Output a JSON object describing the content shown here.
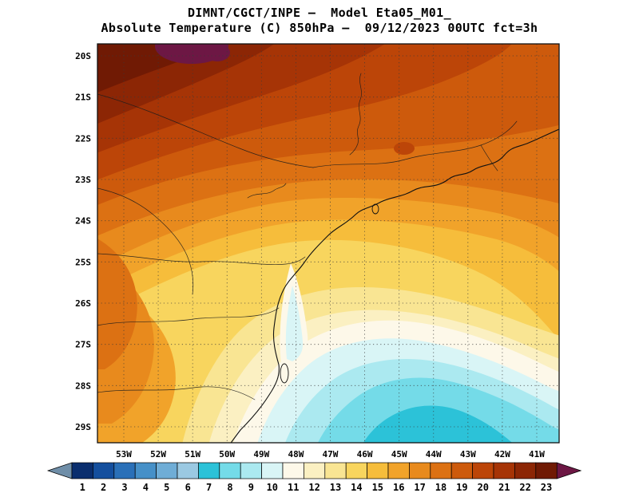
{
  "header": {
    "title_line1": "DIMNT/CGCT/INPE —  Model Eta05_M01_",
    "title_line2": "Absolute Temperature (C) 850hPa —  09/12/2023 00UTC fct=3h"
  },
  "map": {
    "lat_labels": [
      "20S",
      "21S",
      "22S",
      "23S",
      "24S",
      "25S",
      "26S",
      "27S",
      "28S",
      "29S"
    ],
    "lon_labels": [
      "53W",
      "52W",
      "51W",
      "50W",
      "49W",
      "48W",
      "47W",
      "46W",
      "45W",
      "44W",
      "43W",
      "42W",
      "41W"
    ]
  },
  "colorbar": {
    "tick_labels": [
      "1",
      "2",
      "3",
      "4",
      "5",
      "6",
      "7",
      "8",
      "9",
      "10",
      "11",
      "12",
      "13",
      "14",
      "15",
      "16",
      "17",
      "18",
      "19",
      "20",
      "21",
      "22",
      "23"
    ],
    "colors": [
      "#0a2e6e",
      "#144f9e",
      "#2a70b8",
      "#4690c8",
      "#6fadd6",
      "#9bc9e2",
      "#2cc2d8",
      "#74dbe8",
      "#abe9f0",
      "#d9f5f6",
      "#fdf8e9",
      "#fbf0c2",
      "#f9e593",
      "#f8d55e",
      "#f6bd3b",
      "#f1a32a",
      "#e88a1d",
      "#dc7113",
      "#cd5a0c",
      "#bc4508",
      "#a63406",
      "#8c2605",
      "#701a04"
    ],
    "under_arrow_color": "#6f8ea8",
    "over_arrow_color": "#6d1744"
  },
  "chart_data": {
    "type": "heatmap",
    "title": "DIMNT/CGCT/INPE — Model Eta05_M01_",
    "subtitle": "Absolute Temperature (C) 850hPa — 09/12/2023 00UTC fct=3h",
    "variable": "Absolute Temperature",
    "units": "C",
    "level": "850hPa",
    "valid_time": "09/12/2023 00UTC",
    "forecast": "fct=3h",
    "x_labels": [
      "53W",
      "52W",
      "51W",
      "50W",
      "49W",
      "48W",
      "47W",
      "46W",
      "45W",
      "44W",
      "43W",
      "42W",
      "41W"
    ],
    "y_labels": [
      "20S",
      "21S",
      "22S",
      "23S",
      "24S",
      "25S",
      "26S",
      "27S",
      "28S",
      "29S"
    ],
    "levels": [
      1,
      2,
      3,
      4,
      5,
      6,
      7,
      8,
      9,
      10,
      11,
      12,
      13,
      14,
      15,
      16,
      17,
      18,
      19,
      20,
      21,
      22,
      23
    ],
    "legend_position": "bottom",
    "grid": true,
    "values_approx_C": [
      [
        22,
        22,
        22,
        23,
        22,
        22,
        21,
        20,
        20,
        19,
        19,
        18,
        18
      ],
      [
        21,
        21,
        21,
        21,
        21,
        20,
        20,
        19,
        19,
        19,
        18,
        18,
        17
      ],
      [
        20,
        20,
        20,
        20,
        19,
        19,
        19,
        18,
        18,
        18,
        17,
        17,
        17
      ],
      [
        19,
        19,
        18,
        18,
        18,
        17,
        17,
        17,
        17,
        17,
        16,
        16,
        16
      ],
      [
        18,
        17,
        17,
        16,
        16,
        15,
        15,
        15,
        15,
        16,
        16,
        15,
        15
      ],
      [
        17,
        16,
        15,
        14,
        12,
        12,
        13,
        14,
        14,
        15,
        15,
        15,
        14
      ],
      [
        16,
        15,
        14,
        12,
        11,
        10,
        11,
        12,
        13,
        14,
        14,
        14,
        14
      ],
      [
        16,
        15,
        13,
        11,
        10,
        9,
        9,
        10,
        11,
        12,
        13,
        13,
        13
      ],
      [
        15,
        14,
        12,
        10,
        9,
        8,
        8,
        8,
        9,
        10,
        10,
        11,
        11
      ],
      [
        15,
        13,
        11,
        9,
        8,
        8,
        7,
        7,
        8,
        8,
        9,
        9,
        10
      ]
    ]
  }
}
